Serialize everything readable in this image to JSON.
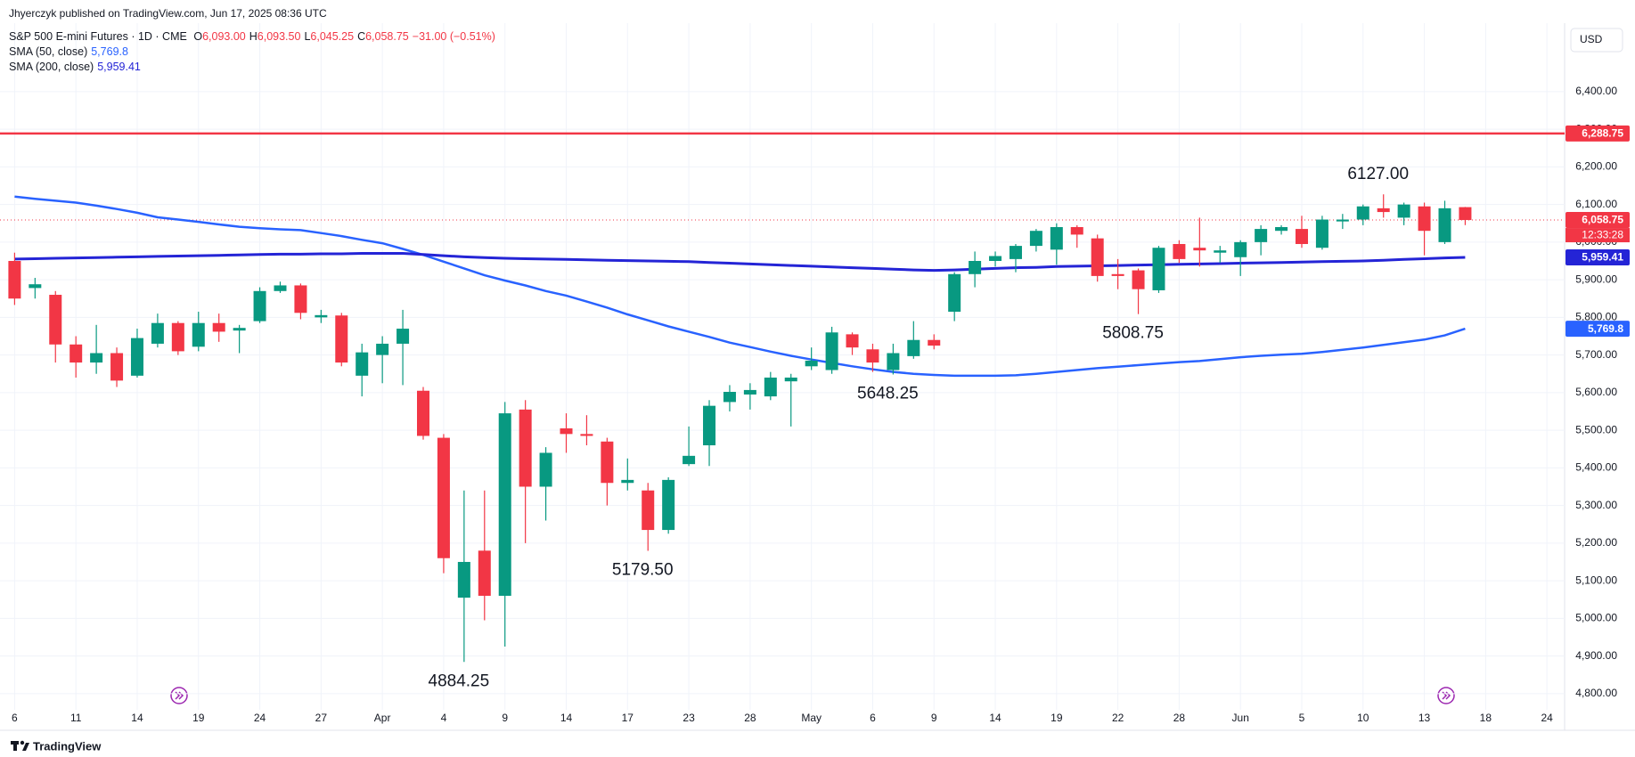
{
  "header": {
    "published": "Jhyerczyk published on TradingView.com, Jun 17, 2025 08:36 UTC",
    "brand": "TradingView",
    "currency": "USD"
  },
  "chart_data": {
    "type": "candlestick",
    "title": "S&P 500 E-mini Futures · 1D · CME",
    "legend": {
      "ohlc": [
        {
          "key": "O",
          "value": "6,093.00"
        },
        {
          "key": "H",
          "value": "6,093.50"
        },
        {
          "key": "L",
          "value": "6,045.25"
        },
        {
          "key": "C",
          "value": "6,058.75"
        }
      ],
      "change": "−31.00 (−0.51%)"
    },
    "countdown": "12:33:28",
    "up_color": "#089981",
    "down_color": "#f23645",
    "categories": [
      "6",
      null,
      null,
      "11",
      null,
      null,
      "14",
      null,
      null,
      "19",
      null,
      null,
      "24",
      null,
      null,
      "27",
      null,
      null,
      "Apr",
      null,
      null,
      "4",
      null,
      null,
      "9",
      null,
      null,
      "14",
      null,
      null,
      "17",
      null,
      null,
      "23",
      null,
      null,
      "28",
      null,
      null,
      "May",
      null,
      null,
      "6",
      null,
      null,
      "9",
      null,
      null,
      "14",
      null,
      null,
      "19",
      null,
      null,
      "22",
      null,
      null,
      "28",
      null,
      null,
      "Jun",
      null,
      null,
      "5",
      null,
      null,
      "10",
      null,
      null,
      "13",
      null,
      null,
      "18",
      null,
      null,
      "24"
    ],
    "open": [
      5950,
      5878,
      5860,
      5728,
      5680,
      5705,
      5645,
      5730,
      5785,
      5722,
      5785,
      5765,
      5790,
      5870,
      5885,
      5800,
      5805,
      5645,
      5700,
      5730,
      5605,
      5480,
      5055,
      5180,
      5060,
      5555,
      5350,
      5505,
      5490,
      5470,
      5360,
      5340,
      5235,
      5410,
      5460,
      5575,
      5595,
      5590,
      5630,
      5670,
      5660,
      5755,
      5715,
      5660,
      5697,
      5740,
      5815,
      5915,
      5950,
      5955,
      5990,
      5980,
      6040,
      6010,
      5915,
      5925,
      5872,
      5995,
      5985,
      5972,
      5960,
      6000,
      6030,
      6035,
      5985,
      6055,
      6060,
      6090,
      6065,
      6095,
      6000,
      6093,
      null,
      null,
      null,
      null
    ],
    "high": [
      5972,
      5905,
      5870,
      5750,
      5780,
      5720,
      5770,
      5810,
      5790,
      5815,
      5810,
      5780,
      5880,
      5895,
      5890,
      5820,
      5812,
      5730,
      5750,
      5820,
      5615,
      5490,
      5340,
      5340,
      5575,
      5580,
      5455,
      5545,
      5540,
      5480,
      5425,
      5360,
      5375,
      5510,
      5580,
      5620,
      5625,
      5655,
      5650,
      5720,
      5775,
      5760,
      5730,
      5730,
      5790,
      5755,
      5920,
      5975,
      5975,
      5995,
      6035,
      6050,
      6045,
      6020,
      5955,
      5930,
      5990,
      6005,
      6065,
      5990,
      6005,
      6045,
      6045,
      6070,
      6070,
      6075,
      6100,
      6127,
      6105,
      6105,
      6110,
      6093.5,
      null,
      null,
      null,
      null
    ],
    "low": [
      5833,
      5850,
      5680,
      5640,
      5650,
      5615,
      5640,
      5720,
      5700,
      5710,
      5735,
      5705,
      5785,
      5865,
      5795,
      5785,
      5670,
      5590,
      5625,
      5620,
      5475,
      5120,
      4884.25,
      4995,
      4925,
      5200,
      5260,
      5440,
      5460,
      5300,
      5340,
      5179.5,
      5225,
      5405,
      5405,
      5550,
      5555,
      5580,
      5510,
      5660,
      5650,
      5700,
      5655,
      5648.25,
      5690,
      5715,
      5790,
      5880,
      5935,
      5920,
      5975,
      5940,
      5985,
      5895,
      5875,
      5808.75,
      5865,
      5945,
      5935,
      5945,
      5910,
      5965,
      6020,
      5985,
      5980,
      6035,
      6045,
      6065,
      6045,
      5965,
      5995,
      6045.25,
      null,
      null,
      null,
      null
    ],
    "close": [
      5850,
      5888,
      5728,
      5680,
      5705,
      5632,
      5745,
      5785,
      5710,
      5785,
      5762,
      5772,
      5870,
      5885,
      5812,
      5806,
      5680,
      5707,
      5730,
      5770,
      5485,
      5160,
      5150,
      5060,
      5545,
      5350,
      5440,
      5490,
      5485,
      5360,
      5368,
      5235,
      5368,
      5432,
      5565,
      5602,
      5607,
      5640,
      5640,
      5685,
      5760,
      5720,
      5680,
      5705,
      5740,
      5725,
      5915,
      5950,
      5963,
      5990,
      6030,
      6040,
      6020,
      5910,
      5910,
      5875,
      5985,
      5955,
      5978,
      5978,
      6000,
      6035,
      6040,
      5995,
      6060,
      6060,
      6095,
      6080,
      6100,
      6030,
      6090,
      6058.75,
      null,
      null,
      null,
      null
    ],
    "series": [
      {
        "name": "SMA (50, close)",
        "value_label": "5,769.8",
        "color": "#2962ff",
        "values": [
          6121,
          6115,
          6110,
          6105,
          6097,
          6088,
          6078,
          6066,
          6060,
          6054,
          6047,
          6041,
          6037,
          6034,
          6032,
          6024,
          6016,
          6006,
          5997,
          5982,
          5966,
          5948,
          5930,
          5912,
          5898,
          5885,
          5870,
          5858,
          5842,
          5826,
          5808,
          5792,
          5776,
          5762,
          5748,
          5733,
          5721,
          5709,
          5698,
          5688,
          5679,
          5670,
          5662,
          5655,
          5650,
          5647,
          5645,
          5645,
          5645,
          5646,
          5650,
          5655,
          5660,
          5665,
          5669,
          5673,
          5677,
          5681,
          5684,
          5689,
          5694,
          5698,
          5701,
          5703,
          5708,
          5714,
          5720,
          5727,
          5734,
          5741,
          5752,
          5769.8,
          null,
          null,
          null,
          null
        ]
      },
      {
        "name": "SMA (200, close)",
        "value_label": "5,959.41",
        "color": "#2424d6",
        "values": [
          5955,
          5956,
          5957,
          5958,
          5959,
          5960,
          5961,
          5962,
          5963,
          5964,
          5965,
          5966,
          5967,
          5968,
          5968,
          5969,
          5969,
          5970,
          5970,
          5970,
          5967,
          5964,
          5961,
          5959,
          5957,
          5956,
          5955,
          5954,
          5953,
          5952,
          5951,
          5950,
          5949,
          5948,
          5946,
          5944,
          5942,
          5940,
          5938,
          5936,
          5934,
          5932,
          5930,
          5928,
          5926,
          5925,
          5926,
          5928,
          5930,
          5932,
          5933,
          5935,
          5936,
          5937,
          5938,
          5939,
          5940,
          5941,
          5942,
          5943,
          5944,
          5945,
          5946,
          5947,
          5948,
          5949,
          5950,
          5952,
          5954,
          5956,
          5958,
          5959.41,
          null,
          null,
          null,
          null
        ]
      }
    ],
    "levels": [
      {
        "value": 6288.75,
        "label": "6,288.75",
        "color": "#f23645"
      }
    ],
    "annotations": [
      {
        "label": "6127.00",
        "value": 6127
      },
      {
        "label": "5808.75",
        "value": 5808.75
      },
      {
        "label": "5648.25",
        "value": 5648.25
      },
      {
        "label": "5179.50",
        "value": 5179.5
      },
      {
        "label": "4884.25",
        "value": 4884.25
      }
    ],
    "ylim": [
      4757,
      6582
    ],
    "yticks": [
      {
        "value": 4800,
        "label": "4,800.00"
      },
      {
        "value": 4900,
        "label": "4,900.00"
      },
      {
        "value": 5000,
        "label": "5,000.00"
      },
      {
        "value": 5100,
        "label": "5,100.00"
      },
      {
        "value": 5200,
        "label": "5,200.00"
      },
      {
        "value": 5300,
        "label": "5,300.00"
      },
      {
        "value": 5400,
        "label": "5,400.00"
      },
      {
        "value": 5500,
        "label": "5,500.00"
      },
      {
        "value": 5600,
        "label": "5,600.00"
      },
      {
        "value": 5700,
        "label": "5,700.00"
      },
      {
        "value": 5800,
        "label": "5,800.00"
      },
      {
        "value": 5900,
        "label": "5,900.00"
      },
      {
        "value": 6000,
        "label": "6,000.00"
      },
      {
        "value": 6100,
        "label": "6,100.00"
      },
      {
        "value": 6200,
        "label": "6,200.00"
      },
      {
        "value": 6300,
        "label": "6,300.00"
      },
      {
        "value": 6400,
        "label": "6,400.00"
      }
    ],
    "grid": true
  }
}
